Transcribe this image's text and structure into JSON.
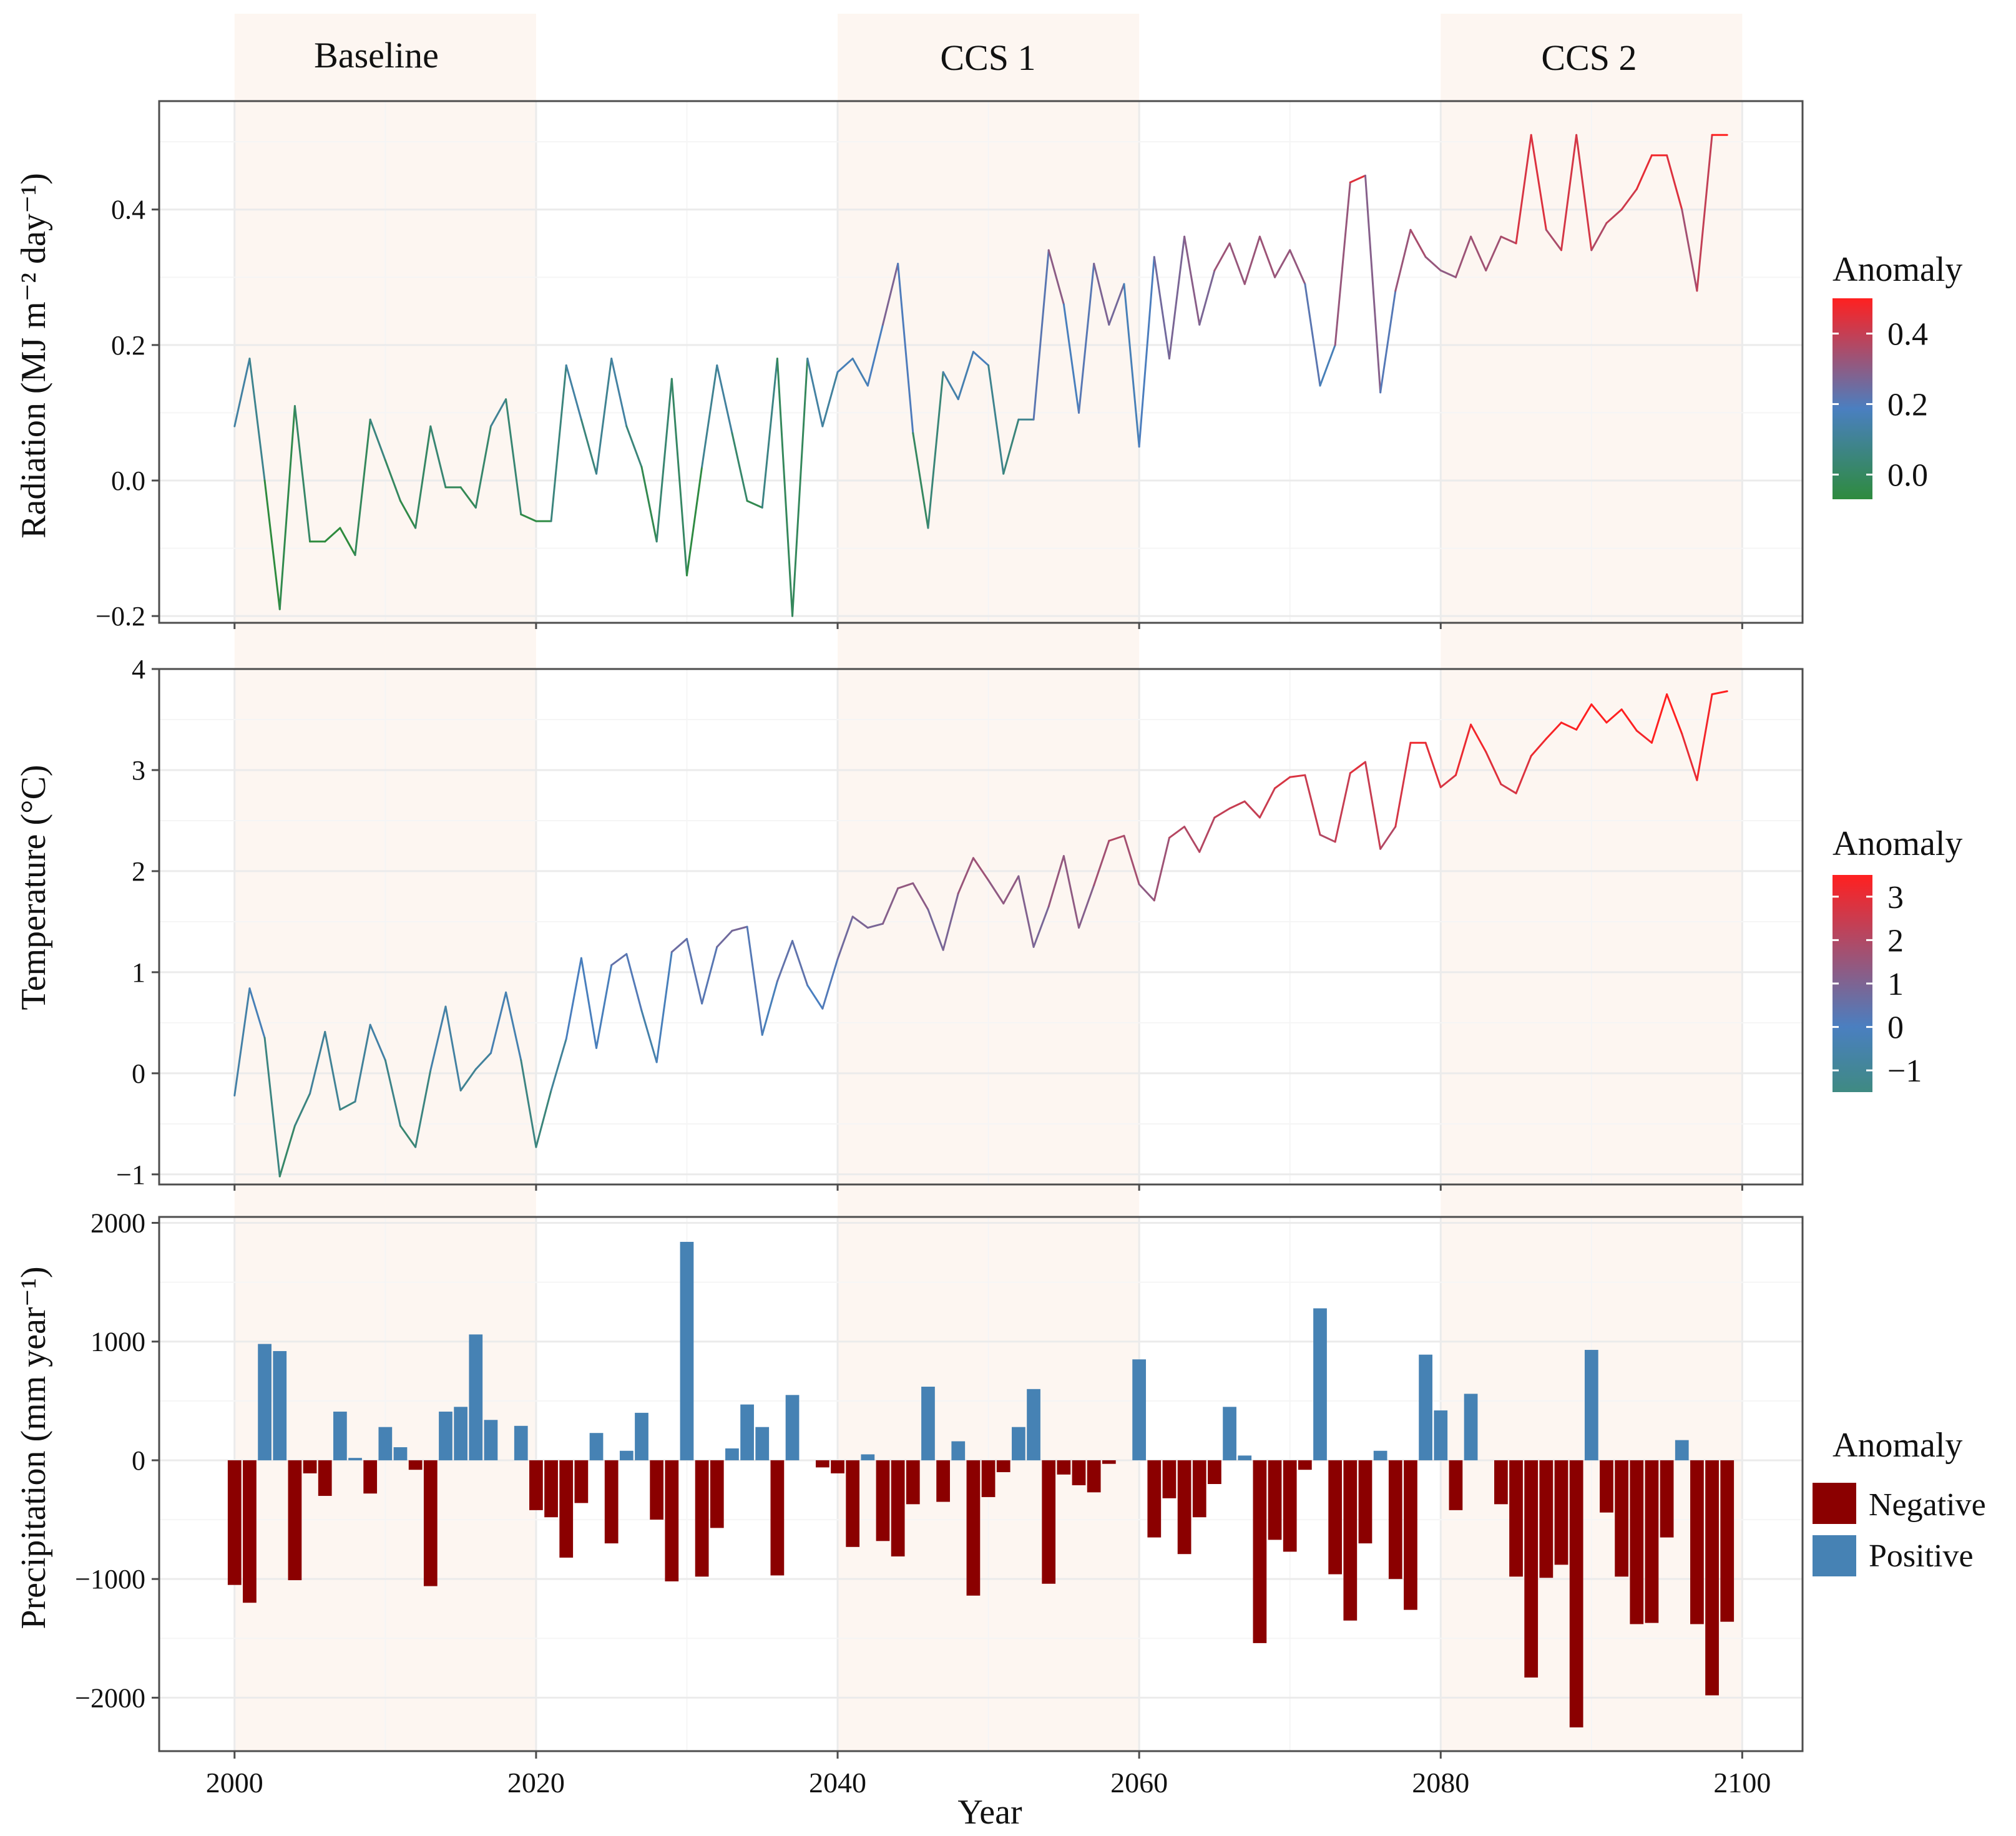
{
  "colors": {
    "period_shade": "#fdf6f1",
    "panel_border": "#4d4d4d",
    "grid_major": "#ebebeb",
    "grid_minor": "#f5f5f5",
    "low": "#2e8b3e",
    "mid": "#4a7fc0",
    "high": "#ff2020",
    "negative": "#8b0000",
    "positive": "#4682b4"
  },
  "chart_data": [
    {
      "id": "radiation",
      "type": "line",
      "ylabel": "Radiation (MJ m⁻² day⁻¹)",
      "ylim": [
        -0.21,
        0.56
      ],
      "yticks": [
        -0.2,
        0.0,
        0.2,
        0.4
      ],
      "ytick_labels": [
        "−0.2",
        "0.0",
        "0.2",
        "0.4"
      ],
      "xlim": [
        1995,
        2104
      ],
      "x": [
        2000,
        2001,
        2002,
        2003,
        2004,
        2005,
        2006,
        2007,
        2008,
        2009,
        2010,
        2011,
        2012,
        2013,
        2014,
        2015,
        2016,
        2017,
        2018,
        2019,
        2020,
        2021,
        2022,
        2023,
        2024,
        2025,
        2026,
        2027,
        2028,
        2029,
        2030,
        2031,
        2032,
        2033,
        2034,
        2035,
        2036,
        2037,
        2038,
        2039,
        2040,
        2041,
        2042,
        2043,
        2044,
        2045,
        2046,
        2047,
        2048,
        2049,
        2050,
        2051,
        2052,
        2053,
        2054,
        2055,
        2056,
        2057,
        2058,
        2059,
        2060,
        2061,
        2062,
        2063,
        2064,
        2065,
        2066,
        2067,
        2068,
        2069,
        2070,
        2071,
        2072,
        2073,
        2074,
        2075,
        2076,
        2077,
        2078,
        2079,
        2080,
        2081,
        2082,
        2083,
        2084,
        2085,
        2086,
        2087,
        2088,
        2089,
        2090,
        2091,
        2092,
        2093,
        2094,
        2095,
        2096,
        2097,
        2098,
        2099
      ],
      "values": [
        0.08,
        0.18,
        0.0,
        -0.19,
        0.11,
        -0.09,
        -0.09,
        -0.07,
        -0.11,
        0.09,
        0.03,
        -0.03,
        -0.07,
        0.08,
        -0.01,
        -0.01,
        -0.04,
        0.08,
        0.12,
        -0.05,
        -0.06,
        -0.06,
        0.17,
        0.09,
        0.01,
        0.18,
        0.08,
        0.02,
        -0.09,
        0.15,
        -0.14,
        0.02,
        0.17,
        0.07,
        -0.03,
        -0.04,
        0.18,
        -0.2,
        0.18,
        0.08,
        0.16,
        0.18,
        0.14,
        0.23,
        0.32,
        0.07,
        -0.07,
        0.16,
        0.12,
        0.19,
        0.17,
        0.01,
        0.09,
        0.09,
        0.34,
        0.26,
        0.1,
        0.32,
        0.23,
        0.29,
        0.05,
        0.33,
        0.18,
        0.36,
        0.23,
        0.31,
        0.35,
        0.29,
        0.36,
        0.3,
        0.34,
        0.29,
        0.14,
        0.2,
        0.44,
        0.45,
        0.13,
        0.28,
        0.37,
        0.33,
        0.31,
        0.3,
        0.36,
        0.31,
        0.36,
        0.35,
        0.51,
        0.37,
        0.34,
        0.51,
        0.34,
        0.38,
        0.4,
        0.43,
        0.48,
        0.48,
        0.4,
        0.28,
        0.51,
        0.51
      ],
      "legend": {
        "title": "Anomaly",
        "range": [
          -0.07,
          0.5
        ],
        "ticks": [
          0.0,
          0.2,
          0.4
        ],
        "tick_labels": [
          "0.0",
          "0.2",
          "0.4"
        ]
      }
    },
    {
      "id": "temperature",
      "type": "line",
      "ylabel": "Temperature  (°C)",
      "ylim": [
        -1.1,
        4.0
      ],
      "yticks": [
        -1,
        0,
        1,
        2,
        3,
        4
      ],
      "ytick_labels": [
        "−1",
        "0",
        "1",
        "2",
        "3",
        "4"
      ],
      "xlim": [
        1995,
        2104
      ],
      "x": [
        2000,
        2001,
        2002,
        2003,
        2004,
        2005,
        2006,
        2007,
        2008,
        2009,
        2010,
        2011,
        2012,
        2013,
        2014,
        2015,
        2016,
        2017,
        2018,
        2019,
        2020,
        2021,
        2022,
        2023,
        2024,
        2025,
        2026,
        2027,
        2028,
        2029,
        2030,
        2031,
        2032,
        2033,
        2034,
        2035,
        2036,
        2037,
        2038,
        2039,
        2040,
        2041,
        2042,
        2043,
        2044,
        2045,
        2046,
        2047,
        2048,
        2049,
        2050,
        2051,
        2052,
        2053,
        2054,
        2055,
        2056,
        2057,
        2058,
        2059,
        2060,
        2061,
        2062,
        2063,
        2064,
        2065,
        2066,
        2067,
        2068,
        2069,
        2070,
        2071,
        2072,
        2073,
        2074,
        2075,
        2076,
        2077,
        2078,
        2079,
        2080,
        2081,
        2082,
        2083,
        2084,
        2085,
        2086,
        2087,
        2088,
        2089,
        2090,
        2091,
        2092,
        2093,
        2094,
        2095,
        2096,
        2097,
        2098,
        2099
      ],
      "values": [
        -0.22,
        0.84,
        0.35,
        -1.02,
        -0.52,
        -0.2,
        0.41,
        -0.36,
        -0.28,
        0.48,
        0.13,
        -0.52,
        -0.73,
        0.03,
        0.66,
        -0.17,
        0.04,
        0.2,
        0.8,
        0.13,
        -0.73,
        -0.17,
        0.34,
        1.14,
        0.25,
        1.07,
        1.18,
        0.62,
        0.11,
        1.2,
        1.33,
        0.69,
        1.25,
        1.41,
        1.45,
        0.38,
        0.91,
        1.31,
        0.87,
        0.64,
        1.13,
        1.55,
        1.44,
        1.48,
        1.83,
        1.88,
        1.62,
        1.22,
        1.78,
        2.13,
        1.91,
        1.68,
        1.95,
        1.25,
        1.65,
        2.15,
        1.44,
        1.86,
        2.3,
        2.35,
        1.87,
        1.71,
        2.33,
        2.44,
        2.19,
        2.53,
        2.62,
        2.69,
        2.53,
        2.82,
        2.93,
        2.95,
        2.36,
        2.29,
        2.97,
        3.08,
        2.22,
        2.44,
        3.27,
        3.27,
        2.83,
        2.95,
        3.45,
        3.18,
        2.86,
        2.77,
        3.14,
        3.31,
        3.47,
        3.4,
        3.65,
        3.47,
        3.6,
        3.39,
        3.27,
        3.75,
        3.36,
        2.9,
        3.75,
        3.78
      ],
      "legend": {
        "title": "Anomaly",
        "range": [
          -1.5,
          3.5
        ],
        "ticks": [
          -1,
          0,
          1,
          2,
          3
        ],
        "tick_labels": [
          "−1",
          "0",
          "1",
          "2",
          "3"
        ]
      }
    },
    {
      "id": "precipitation",
      "type": "bar",
      "ylabel": "Precipitation (mm year⁻¹)",
      "xlabel": "Year",
      "ylim": [
        -2450,
        2050
      ],
      "yticks": [
        -2000,
        -1000,
        0,
        1000,
        2000
      ],
      "ytick_labels": [
        "−2000",
        "−1000",
        "0",
        "1000",
        "2000"
      ],
      "xlim": [
        1995,
        2104
      ],
      "xticks": [
        2000,
        2020,
        2040,
        2060,
        2080,
        2100
      ],
      "xtick_labels": [
        "2000",
        "2020",
        "2040",
        "2060",
        "2080",
        "2100"
      ],
      "x": [
        2000,
        2001,
        2002,
        2003,
        2004,
        2005,
        2006,
        2007,
        2008,
        2009,
        2010,
        2011,
        2012,
        2013,
        2014,
        2015,
        2016,
        2017,
        2018,
        2019,
        2020,
        2021,
        2022,
        2023,
        2024,
        2025,
        2026,
        2027,
        2028,
        2029,
        2030,
        2031,
        2032,
        2033,
        2034,
        2035,
        2036,
        2037,
        2038,
        2039,
        2040,
        2041,
        2042,
        2043,
        2044,
        2045,
        2046,
        2047,
        2048,
        2049,
        2050,
        2051,
        2052,
        2053,
        2054,
        2055,
        2056,
        2057,
        2058,
        2059,
        2060,
        2061,
        2062,
        2063,
        2064,
        2065,
        2066,
        2067,
        2068,
        2069,
        2070,
        2071,
        2072,
        2073,
        2074,
        2075,
        2076,
        2077,
        2078,
        2079,
        2080,
        2081,
        2082,
        2083,
        2084,
        2085,
        2086,
        2087,
        2088,
        2089,
        2090,
        2091,
        2092,
        2093,
        2094,
        2095,
        2096,
        2097,
        2098,
        2099
      ],
      "values": [
        -1050,
        -1200,
        980,
        920,
        -1010,
        -110,
        -300,
        410,
        20,
        -280,
        280,
        110,
        -80,
        -1060,
        410,
        450,
        1060,
        340,
        0,
        290,
        -420,
        -480,
        -820,
        -360,
        230,
        -700,
        80,
        400,
        -500,
        -1020,
        1840,
        -980,
        -570,
        100,
        470,
        280,
        -970,
        550,
        0,
        -60,
        -110,
        -730,
        50,
        -680,
        -810,
        -370,
        620,
        -350,
        160,
        -1140,
        -310,
        -100,
        280,
        600,
        -1040,
        -120,
        -210,
        -270,
        -30,
        0,
        850,
        -650,
        -320,
        -790,
        -480,
        -200,
        450,
        40,
        -1540,
        -670,
        -770,
        -80,
        1280,
        -960,
        -1350,
        -700,
        80,
        -1000,
        -1260,
        890,
        420,
        -420,
        560,
        0,
        -370,
        -980,
        -1830,
        -990,
        -880,
        -2250,
        930,
        -440,
        -980,
        -1380,
        -1370,
        -650,
        170,
        -1380,
        -1980,
        -1360
      ],
      "legend": {
        "title": "Anomaly",
        "entries": [
          {
            "label": "Negative",
            "color": "#8b0000"
          },
          {
            "label": "Positive",
            "color": "#4682b4"
          }
        ]
      }
    }
  ],
  "periods": [
    {
      "label": "Baseline",
      "start": 2000,
      "end": 2020
    },
    {
      "label": "CCS 1",
      "start": 2040,
      "end": 2060
    },
    {
      "label": "CCS 2",
      "start": 2080,
      "end": 2100
    }
  ]
}
